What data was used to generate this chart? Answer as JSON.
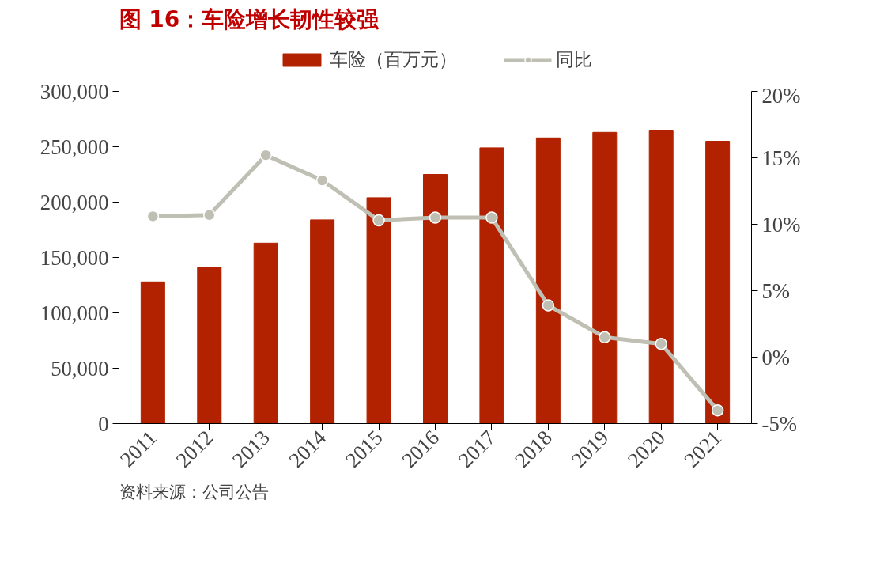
{
  "chart_data": {
    "type": "bar",
    "title": "图 16：车险增长韧性较强",
    "categories": [
      "2011",
      "2012",
      "2013",
      "2014",
      "2015",
      "2016",
      "2017",
      "2018",
      "2019",
      "2020",
      "2021"
    ],
    "series": [
      {
        "name": "车险（百万元）",
        "color": "#b22200",
        "values": [
          128000,
          141000,
          163000,
          184000,
          204000,
          225000,
          249000,
          258000,
          263000,
          265000,
          255000
        ]
      },
      {
        "name": "同比",
        "type": "line",
        "axis": "y2",
        "color": "#bfbfb4",
        "marker": "circle",
        "values": [
          10.6,
          10.7,
          15.2,
          13.3,
          10.3,
          10.5,
          10.5,
          3.9,
          1.5,
          1.0,
          -4.0
        ]
      }
    ],
    "ylim": [
      0,
      300000
    ],
    "yticks": [
      {
        "value": 0,
        "label": "0"
      },
      {
        "value": 50000,
        "label": "50,000"
      },
      {
        "value": 100000,
        "label": "100,000"
      },
      {
        "value": 150000,
        "label": "150,000"
      },
      {
        "value": 200000,
        "label": "200,000"
      },
      {
        "value": 250000,
        "label": "250,000"
      },
      {
        "value": 300000,
        "label": "300,000"
      }
    ],
    "y2lim": [
      -5,
      20
    ],
    "y2ticks": [
      {
        "value": -5,
        "label": "-5%"
      },
      {
        "value": 0,
        "label": "0%"
      },
      {
        "value": 5,
        "label": "5%"
      },
      {
        "value": 10,
        "label": "10%"
      },
      {
        "value": 15,
        "label": "15%"
      },
      {
        "value": 20,
        "label": "20%"
      }
    ],
    "grid": false,
    "legend": "top",
    "annotations": [
      "资料来源：公司公告"
    ]
  }
}
